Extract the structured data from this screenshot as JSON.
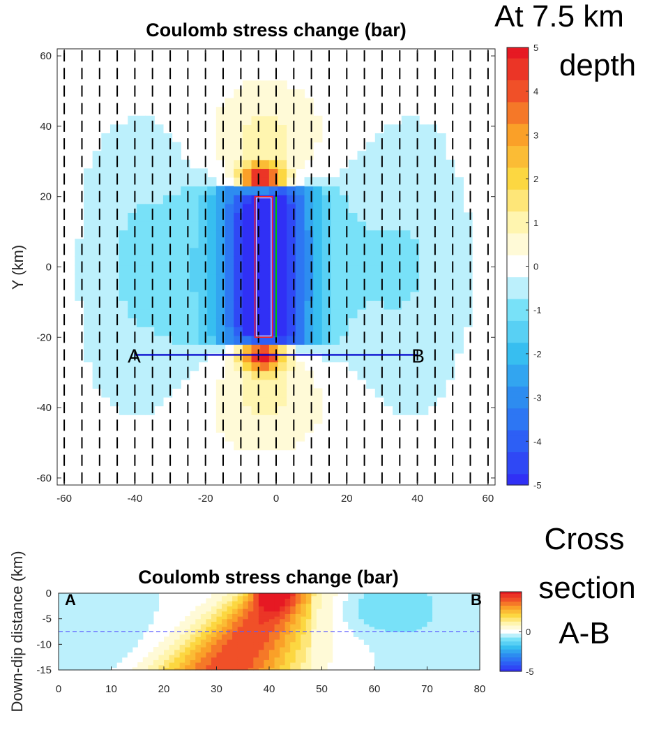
{
  "annotations": {
    "depth_line1": "At 7.5 km",
    "depth_line2": "depth",
    "xs_line1": "Cross",
    "xs_line2": "section",
    "xs_line3": "A-B"
  },
  "colors": {
    "fault_outline": "#ff2020",
    "fault_trace": "#00c000",
    "profile_line": "#0000cc",
    "depth_dash": "#5a5aff",
    "receiver_ticks": "#000000"
  },
  "chart_data": [
    {
      "type": "heatmap",
      "title": "Coulomb stress change (bar)",
      "xlabel": "",
      "ylabel": "Y (km)",
      "xlim": [
        -62,
        62
      ],
      "ylim": [
        -62,
        62
      ],
      "xticks": [
        -60,
        -40,
        -20,
        0,
        20,
        40,
        60
      ],
      "yticks": [
        -60,
        -40,
        -20,
        0,
        20,
        40,
        60
      ],
      "colorbar": {
        "min": -5,
        "max": 5,
        "ticks": [
          5,
          4,
          3,
          2,
          1,
          0,
          -1,
          -2,
          -3,
          -4,
          -5
        ]
      },
      "grid_step_km": 5,
      "source_fault": {
        "x": [
          -6,
          -1
        ],
        "y": [
          -20,
          20
        ]
      },
      "fault_trace": {
        "x": 0,
        "y": [
          -20,
          20
        ]
      },
      "profile": {
        "start": {
          "label": "A",
          "x": -40,
          "y": -25
        },
        "end": {
          "label": "B",
          "x": 40,
          "y": -25
        }
      },
      "receiver_fault_strike": "N-S",
      "value_description": "negative (stress shadow) lobes east and west of the fault, up to -5 near the fault; positive lobes north and south of the fault tips, up to +5 at the tips"
    },
    {
      "type": "heatmap",
      "title": "Coulomb stress change (bar)",
      "xlabel": "",
      "ylabel": "Down-dip distance (km)",
      "xlim": [
        0,
        80
      ],
      "ylim": [
        -15,
        0
      ],
      "xticks": [
        0,
        10,
        20,
        30,
        40,
        50,
        60,
        70,
        80
      ],
      "yticks": [
        0,
        -5,
        -10,
        -15
      ],
      "colorbar": {
        "min": -5,
        "max": 5,
        "ticks": [
          5,
          0,
          -5
        ],
        "visible_tick_labels": [
          "0",
          "-5"
        ]
      },
      "end_labels": {
        "left": "A",
        "right": "B"
      },
      "depth_line_km": -7.5,
      "value_description": "positive band dipping from about x=42 at the surface to about x=32 at 15 km depth, maximum near x=40; weak negative values at both ends"
    }
  ]
}
